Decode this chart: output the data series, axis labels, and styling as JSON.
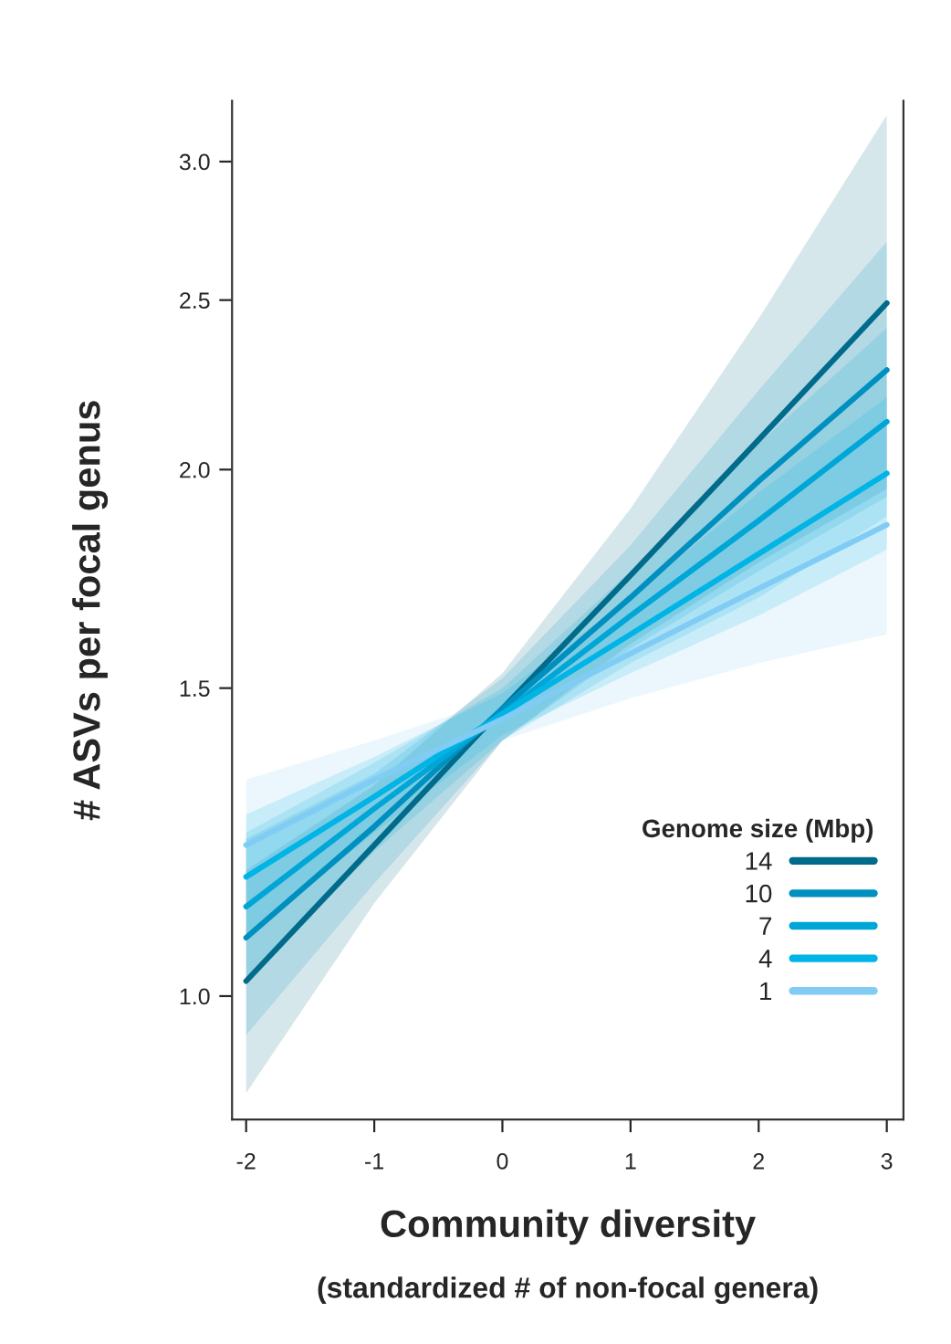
{
  "chart_data": {
    "type": "line",
    "xlabel": "Community diversity",
    "ylabel": "# ASVs per focal genus",
    "legend_title": "Genome size (Mbp)",
    "annotations": [
      "(standardized # of non-focal genera)"
    ],
    "log": "y",
    "xlim": [
      -2.11,
      3.13
    ],
    "ylim": [
      0.85,
      3.25
    ],
    "xticks": [
      -2,
      -1,
      0,
      1,
      2,
      3
    ],
    "yticks": [
      {
        "value": 1.0,
        "label": "1.0"
      },
      {
        "value": 1.5,
        "label": "1.5"
      },
      {
        "value": 2.0,
        "label": "2.0"
      },
      {
        "value": 2.5,
        "label": "2.5"
      },
      {
        "value": 3.0,
        "label": "3.0"
      }
    ],
    "grid": false,
    "legend": "bottom right",
    "marker": "none",
    "line_style": "solid",
    "series": [
      {
        "name": "14",
        "color": "#006b8a",
        "x": [
          -2,
          -1,
          0,
          1,
          2,
          3
        ],
        "values": [
          1.02,
          1.22,
          1.46,
          1.74,
          2.08,
          2.49
        ],
        "lower": [
          0.88,
          1.13,
          1.4,
          1.59,
          1.77,
          1.95
        ],
        "upper": [
          1.18,
          1.32,
          1.53,
          1.9,
          2.44,
          3.19
        ]
      },
      {
        "name": "10",
        "color": "#0090c0",
        "x": [
          -2,
          -1,
          0,
          1,
          2,
          3
        ],
        "values": [
          1.08,
          1.25,
          1.46,
          1.69,
          1.97,
          2.28
        ],
        "lower": [
          0.95,
          1.16,
          1.4,
          1.58,
          1.75,
          1.93
        ],
        "upper": [
          1.23,
          1.34,
          1.52,
          1.81,
          2.22,
          2.7
        ]
      },
      {
        "name": "7",
        "color": "#00a6d6",
        "x": [
          -2,
          -1,
          0,
          1,
          2,
          3
        ],
        "values": [
          1.125,
          1.28,
          1.45,
          1.65,
          1.87,
          2.13
        ],
        "lower": [
          1.02,
          1.21,
          1.4,
          1.55,
          1.69,
          1.88
        ],
        "upper": [
          1.24,
          1.36,
          1.5,
          1.75,
          2.07,
          2.41
        ]
      },
      {
        "name": "4",
        "color": "#00b4e6",
        "x": [
          -2,
          -1,
          0,
          1,
          2,
          3
        ],
        "values": [
          1.17,
          1.3,
          1.45,
          1.61,
          1.79,
          1.99
        ],
        "lower": [
          1.08,
          1.24,
          1.41,
          1.53,
          1.65,
          1.8
        ],
        "upper": [
          1.27,
          1.37,
          1.49,
          1.69,
          1.94,
          2.2
        ]
      },
      {
        "name": "1",
        "color": "#80ccf5",
        "x": [
          -2,
          -1,
          0,
          1,
          2,
          3
        ],
        "values": [
          1.22,
          1.33,
          1.44,
          1.57,
          1.71,
          1.86
        ],
        "lower": [
          1.12,
          1.27,
          1.4,
          1.48,
          1.55,
          1.61
        ],
        "upper": [
          1.33,
          1.4,
          1.48,
          1.67,
          1.89,
          2.15
        ]
      }
    ]
  }
}
